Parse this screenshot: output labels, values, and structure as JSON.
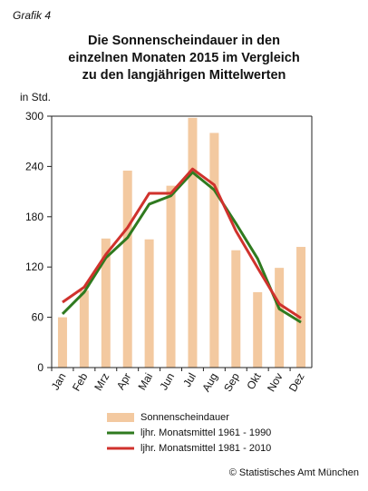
{
  "header": {
    "label": "Grafik 4"
  },
  "title_lines": [
    "Die Sonnenscheindauer in den",
    "einzelnen Monaten 2015 im Vergleich",
    "zu den langjährigen Mittelwerten"
  ],
  "copyright": "© Statistisches Amt München",
  "colors": {
    "bar": "#f3c9a0",
    "series1": "#2f7a1f",
    "series2": "#d0322d"
  },
  "chart_data": {
    "type": "bar",
    "ylabel": "in Std.",
    "ylim": [
      0,
      300
    ],
    "yticks": [
      0,
      60,
      120,
      180,
      240,
      300
    ],
    "grid": false,
    "legend_position": "bottom",
    "categories": [
      "Jan",
      "Feb",
      "Mrz",
      "Apr",
      "Mai",
      "Jun",
      "Jul",
      "Aug",
      "Sep",
      "Okt",
      "Nov",
      "Dez"
    ],
    "series": [
      {
        "name": "Sonnenscheindauer",
        "type": "bar",
        "values": [
          60,
          92,
          154,
          235,
          153,
          217,
          298,
          280,
          140,
          90,
          119,
          144
        ]
      },
      {
        "name": "ljhr. Monatsmittel 1961 - 1990",
        "type": "line",
        "values": [
          64,
          90,
          131,
          155,
          195,
          205,
          233,
          212,
          172,
          130,
          70,
          54
        ]
      },
      {
        "name": "ljhr. Monatsmittel 1981 - 2010",
        "type": "line",
        "values": [
          78,
          96,
          135,
          167,
          208,
          208,
          237,
          218,
          163,
          119,
          76,
          59
        ]
      }
    ]
  }
}
